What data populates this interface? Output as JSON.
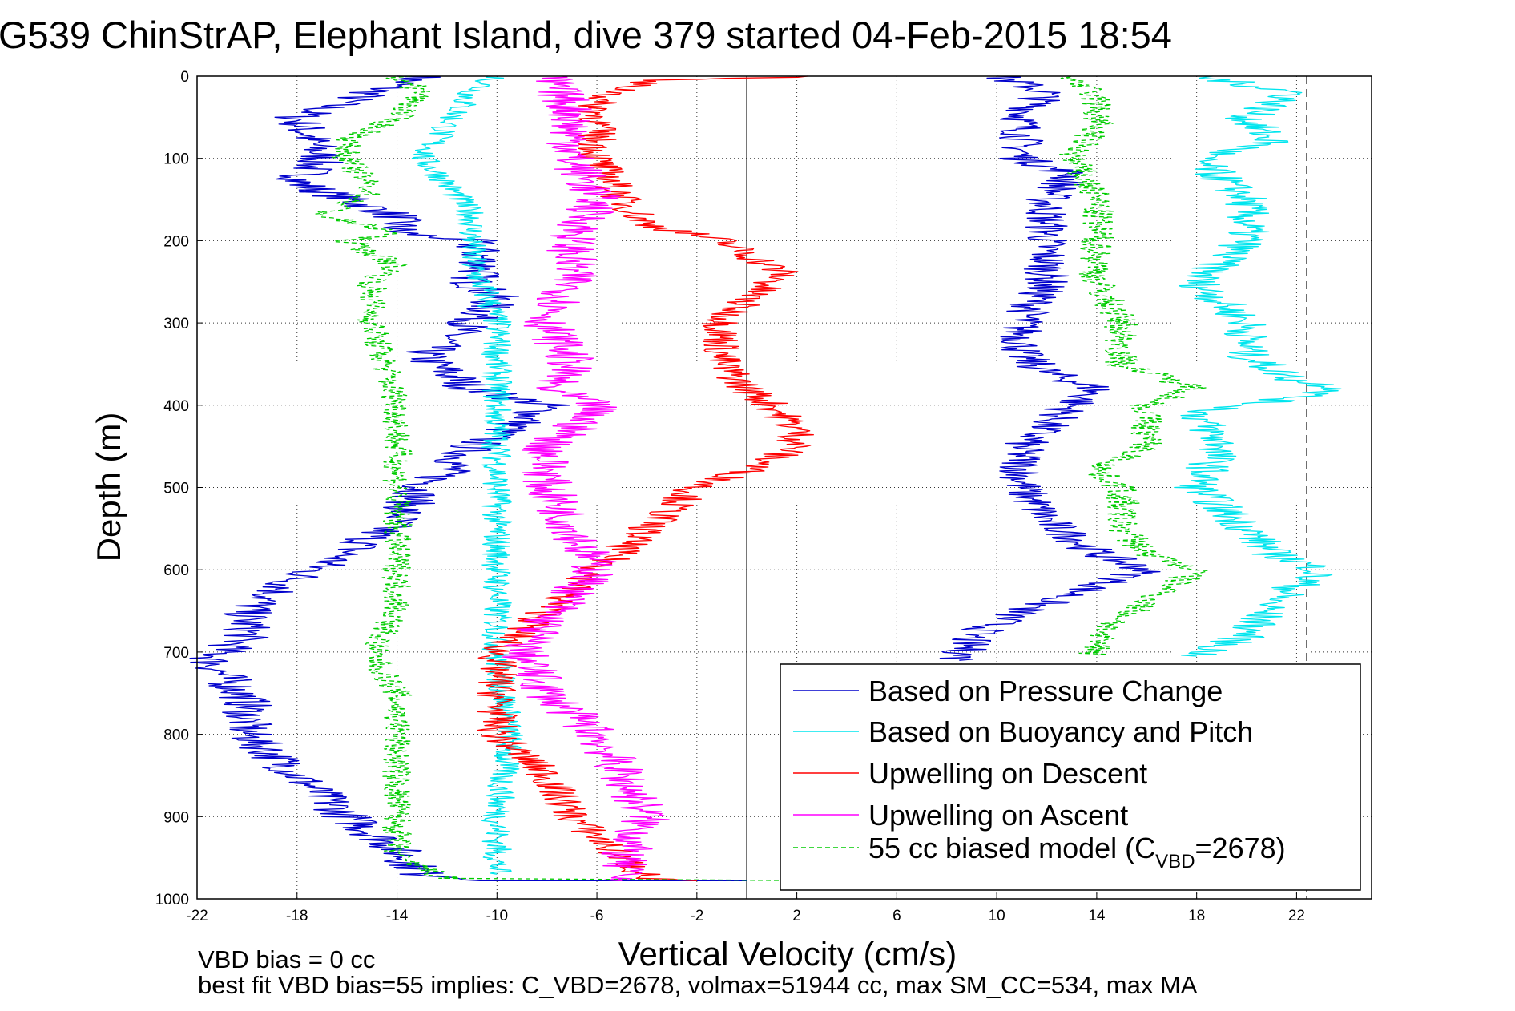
{
  "chart_data": {
    "type": "line",
    "title": "G539 ChinStrAP, Elephant Island, dive 379 started 04-Feb-2015 18:54",
    "xlabel": "Vertical Velocity (cm/s)",
    "ylabel": "Depth (m)",
    "xlim": [
      -22,
      25
    ],
    "ylim": [
      0,
      1000
    ],
    "y_reversed": true,
    "grid": true,
    "xticks": [
      -22,
      -18,
      -14,
      -10,
      -6,
      -2,
      2,
      6,
      10,
      14,
      18,
      22
    ],
    "yticks": [
      0,
      100,
      200,
      300,
      400,
      500,
      600,
      700,
      800,
      900,
      1000
    ],
    "reference_lines": [
      {
        "axis": "x",
        "value": 0,
        "style": "solid",
        "color": "#000000"
      },
      {
        "axis": "x",
        "value": 22.4,
        "style": "dashed",
        "color": "#555555"
      }
    ],
    "legend": {
      "location": "bottom-right",
      "entries": [
        {
          "label": "Based on Pressure Change",
          "color": "#0000cc",
          "style": "solid"
        },
        {
          "label": "Based on Buoyancy and Pitch",
          "color": "#00e5ee",
          "style": "solid"
        },
        {
          "label": "Upwelling on Descent",
          "color": "#ff0000",
          "style": "solid"
        },
        {
          "label": "Upwelling on Ascent",
          "color": "#ff00ff",
          "style": "solid"
        },
        {
          "label_main": "55 cc biased model (C",
          "label_sub": "VBD",
          "label_tail": "=2678)",
          "color": "#00cc00",
          "style": "dashed"
        }
      ]
    },
    "series": [
      {
        "color": "#0000cc",
        "dash": false,
        "noise": 1.0,
        "points": [
          [
            0,
            -13
          ],
          [
            20,
            -15
          ],
          [
            50,
            -18
          ],
          [
            100,
            -17
          ],
          [
            130,
            -18
          ],
          [
            170,
            -14
          ],
          [
            190,
            -14
          ],
          [
            200,
            -11
          ],
          [
            230,
            -10.5
          ],
          [
            250,
            -11
          ],
          [
            270,
            -10
          ],
          [
            300,
            -11
          ],
          [
            320,
            -12
          ],
          [
            340,
            -13
          ],
          [
            360,
            -12
          ],
          [
            380,
            -11
          ],
          [
            400,
            -8
          ],
          [
            420,
            -9
          ],
          [
            450,
            -11
          ],
          [
            480,
            -12
          ],
          [
            500,
            -13
          ],
          [
            540,
            -14
          ],
          [
            580,
            -16
          ],
          [
            610,
            -18
          ],
          [
            650,
            -20
          ],
          [
            680,
            -20
          ],
          [
            710,
            -21.5
          ],
          [
            760,
            -20
          ],
          [
            800,
            -20
          ],
          [
            850,
            -18
          ],
          [
            900,
            -16
          ],
          [
            940,
            -14
          ],
          [
            970,
            -13
          ],
          [
            978,
            -10
          ],
          [
            978,
            0
          ]
        ]
      },
      {
        "color": "#0000cc",
        "dash": false,
        "noise": 0.9,
        "points": [
          [
            0,
            10
          ],
          [
            20,
            12
          ],
          [
            50,
            11
          ],
          [
            100,
            11
          ],
          [
            120,
            13
          ],
          [
            150,
            12
          ],
          [
            200,
            12
          ],
          [
            250,
            12
          ],
          [
            300,
            11
          ],
          [
            340,
            11
          ],
          [
            360,
            12
          ],
          [
            380,
            14
          ],
          [
            400,
            13
          ],
          [
            450,
            11
          ],
          [
            480,
            11
          ],
          [
            500,
            11
          ],
          [
            540,
            12
          ],
          [
            580,
            14
          ],
          [
            600,
            16
          ],
          [
            620,
            14
          ],
          [
            650,
            11
          ],
          [
            680,
            9
          ],
          [
            710,
            8.5
          ]
        ]
      },
      {
        "color": "#00e5ee",
        "dash": false,
        "noise": 0.6,
        "points": [
          [
            0,
            -10
          ],
          [
            20,
            -11
          ],
          [
            60,
            -12
          ],
          [
            100,
            -13
          ],
          [
            130,
            -12
          ],
          [
            170,
            -11
          ],
          [
            200,
            -11
          ],
          [
            230,
            -11
          ],
          [
            260,
            -10.5
          ],
          [
            300,
            -10
          ],
          [
            350,
            -10
          ],
          [
            400,
            -10
          ],
          [
            450,
            -10
          ],
          [
            500,
            -10
          ],
          [
            550,
            -10
          ],
          [
            600,
            -10
          ],
          [
            650,
            -10
          ],
          [
            700,
            -10
          ],
          [
            800,
            -9.5
          ],
          [
            900,
            -10
          ],
          [
            970,
            -10
          ]
        ]
      },
      {
        "color": "#00e5ee",
        "dash": false,
        "noise": 0.9,
        "points": [
          [
            0,
            18
          ],
          [
            20,
            22
          ],
          [
            50,
            20
          ],
          [
            80,
            21
          ],
          [
            100,
            18
          ],
          [
            150,
            20
          ],
          [
            200,
            20
          ],
          [
            250,
            18
          ],
          [
            300,
            20
          ],
          [
            340,
            20
          ],
          [
            370,
            22
          ],
          [
            380,
            24
          ],
          [
            410,
            18
          ],
          [
            450,
            19
          ],
          [
            500,
            18
          ],
          [
            550,
            20
          ],
          [
            580,
            21
          ],
          [
            600,
            23
          ],
          [
            640,
            21
          ],
          [
            680,
            20
          ],
          [
            705,
            18
          ]
        ]
      },
      {
        "color": "#ff0000",
        "dash": false,
        "noise": 0.8,
        "points": [
          [
            0,
            3
          ],
          [
            5,
            -4
          ],
          [
            30,
            -6
          ],
          [
            100,
            -6
          ],
          [
            150,
            -5
          ],
          [
            180,
            -4
          ],
          [
            200,
            -1
          ],
          [
            240,
            1.5
          ],
          [
            270,
            0
          ],
          [
            300,
            -1
          ],
          [
            350,
            -1
          ],
          [
            380,
            0
          ],
          [
            400,
            1
          ],
          [
            430,
            2
          ],
          [
            450,
            2
          ],
          [
            480,
            0
          ],
          [
            500,
            -2
          ],
          [
            550,
            -4
          ],
          [
            600,
            -6
          ],
          [
            650,
            -8
          ],
          [
            700,
            -10
          ],
          [
            750,
            -10
          ],
          [
            800,
            -10
          ],
          [
            850,
            -8
          ],
          [
            900,
            -7
          ],
          [
            950,
            -5
          ],
          [
            975,
            -4
          ],
          [
            978,
            -2
          ]
        ]
      },
      {
        "color": "#ff00ff",
        "dash": false,
        "noise": 1.0,
        "points": [
          [
            0,
            -8
          ],
          [
            40,
            -7
          ],
          [
            100,
            -7
          ],
          [
            150,
            -6
          ],
          [
            200,
            -7
          ],
          [
            250,
            -7
          ],
          [
            300,
            -8
          ],
          [
            350,
            -7
          ],
          [
            380,
            -8
          ],
          [
            400,
            -6
          ],
          [
            430,
            -7
          ],
          [
            450,
            -8
          ],
          [
            500,
            -8
          ],
          [
            550,
            -7
          ],
          [
            600,
            -6
          ],
          [
            630,
            -7
          ],
          [
            660,
            -8
          ],
          [
            700,
            -9
          ],
          [
            750,
            -8
          ],
          [
            800,
            -6
          ],
          [
            850,
            -5
          ],
          [
            900,
            -4
          ],
          [
            950,
            -5
          ],
          [
            978,
            -5
          ]
        ]
      },
      {
        "color": "#00cc00",
        "dash": true,
        "noise": 0.6,
        "points": [
          [
            0,
            -14
          ],
          [
            20,
            -13
          ],
          [
            50,
            -14
          ],
          [
            80,
            -16
          ],
          [
            100,
            -16
          ],
          [
            140,
            -15
          ],
          [
            170,
            -17
          ],
          [
            190,
            -14
          ],
          [
            200,
            -16
          ],
          [
            230,
            -14
          ],
          [
            250,
            -15
          ],
          [
            300,
            -15
          ],
          [
            350,
            -14.5
          ],
          [
            400,
            -14
          ],
          [
            450,
            -14
          ],
          [
            500,
            -14
          ],
          [
            550,
            -14
          ],
          [
            600,
            -14
          ],
          [
            650,
            -14
          ],
          [
            700,
            -15
          ],
          [
            750,
            -14
          ],
          [
            800,
            -14
          ],
          [
            850,
            -14
          ],
          [
            900,
            -14
          ],
          [
            950,
            -14
          ],
          [
            975,
            -12
          ],
          [
            978,
            3
          ]
        ]
      },
      {
        "color": "#00cc00",
        "dash": true,
        "noise": 0.7,
        "points": [
          [
            0,
            13
          ],
          [
            30,
            14
          ],
          [
            60,
            14
          ],
          [
            100,
            13
          ],
          [
            150,
            14
          ],
          [
            200,
            14
          ],
          [
            250,
            14
          ],
          [
            300,
            15
          ],
          [
            350,
            15
          ],
          [
            380,
            18
          ],
          [
            400,
            16
          ],
          [
            450,
            16
          ],
          [
            480,
            14
          ],
          [
            500,
            15
          ],
          [
            550,
            15
          ],
          [
            580,
            16
          ],
          [
            600,
            18
          ],
          [
            640,
            16
          ],
          [
            680,
            14
          ],
          [
            705,
            14
          ]
        ]
      }
    ]
  },
  "footer": {
    "line1": "VBD bias = 0 cc",
    "line2": "best fit VBD bias=55 implies: C_VBD=2678, volmax=51944 cc, max SM_CC=534, max MA"
  }
}
